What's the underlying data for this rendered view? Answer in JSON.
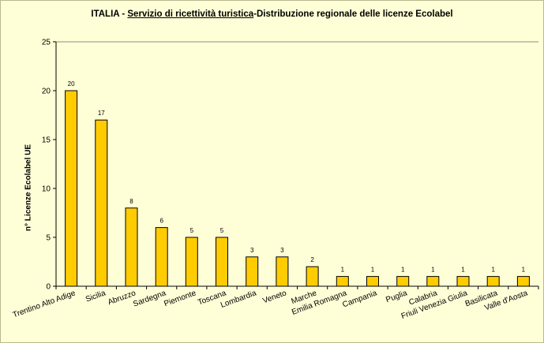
{
  "chart_data": {
    "type": "bar",
    "title_parts": {
      "prefix": "ITALIA - ",
      "underlined": "Servizio di ricettività turistica",
      "suffix": "-Distribuzione regionale delle licenze Ecolabel"
    },
    "ylabel": "n° Licenze  Ecolabel  UE",
    "xlabel": "",
    "ylim": [
      0,
      25
    ],
    "yticks": [
      0,
      5,
      10,
      15,
      20,
      25
    ],
    "grid": false,
    "legend": "none",
    "categories": [
      "Trentino Alto Adige",
      "Sicilia",
      "Abruzzo",
      "Sardegna",
      "Piemonte",
      "Toscana",
      "Lombardia",
      "Veneto",
      "Marche",
      "Emilia Romagna",
      "Campania",
      "Puglia",
      "Calabria",
      "Friuli Venezia Giulia",
      "Basilicata",
      "Valle d'Aosta"
    ],
    "values": [
      20,
      17,
      8,
      6,
      5,
      5,
      3,
      3,
      2,
      1,
      1,
      1,
      1,
      1,
      1,
      1
    ],
    "data_labels": [
      "20",
      "17",
      "8",
      "6",
      "5",
      "5",
      "3",
      "3",
      "2",
      "1",
      "1",
      "1",
      "1",
      "1",
      "1",
      "1"
    ],
    "colors": {
      "bar_fill": "#FFCC00",
      "bar_stroke": "#000000",
      "plot_background": "#FFFFD7",
      "axis": "#000000"
    }
  }
}
